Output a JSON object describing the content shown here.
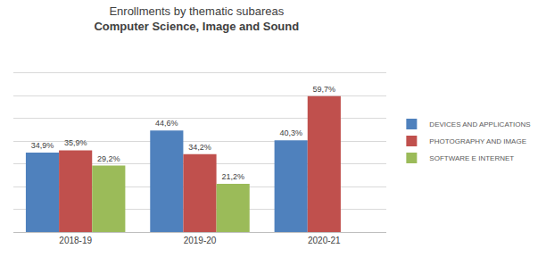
{
  "chart_data": {
    "type": "bar",
    "title": "Enrollments by thematic subareas",
    "subtitle": "Computer Science, Image and Sound",
    "categories": [
      "2018-19",
      "2019-20",
      "2020-21"
    ],
    "series": [
      {
        "name": "DEVICES AND APPLICATIONS",
        "color": "#4f81bd",
        "values": [
          34.9,
          44.6,
          40.3
        ],
        "value_labels": [
          "34,9%",
          "44,6%",
          "40,3%"
        ]
      },
      {
        "name": "PHOTOGRAPHY AND IMAGE",
        "color": "#c0504d",
        "values": [
          35.9,
          34.2,
          59.7
        ],
        "value_labels": [
          "35,9%",
          "34,2%",
          "59,7%"
        ]
      },
      {
        "name": "SOFTWARE E INTERNET",
        "color": "#9bbb59",
        "values": [
          29.2,
          21.2,
          null
        ],
        "value_labels": [
          "29,2%",
          "21,2%",
          null
        ]
      }
    ],
    "ylim": [
      0,
      80
    ],
    "yticks": [
      0,
      10,
      20,
      30,
      40,
      50,
      60,
      70,
      80
    ],
    "grid": true,
    "legend": "right",
    "data_labels": true,
    "tick_labels": "x"
  }
}
